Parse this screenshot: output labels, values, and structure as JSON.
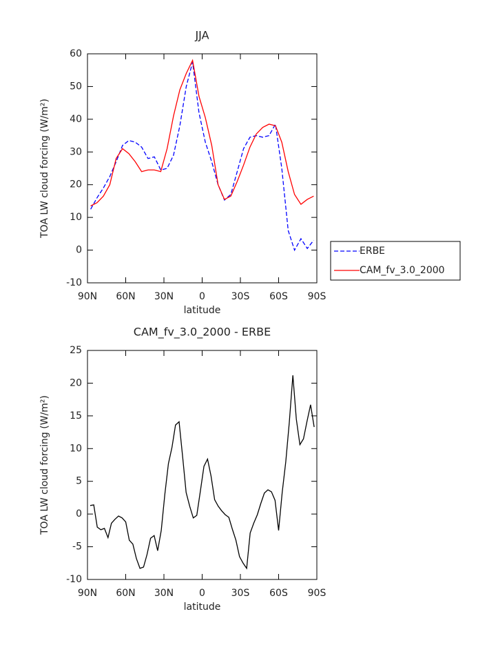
{
  "chart_data": [
    {
      "type": "line",
      "title": "JJA",
      "xlabel": "latitude",
      "ylabel": "TOA LW cloud forcing (W/m²)",
      "x": [
        87.5,
        82.5,
        77.5,
        72.5,
        67.5,
        62.5,
        57.5,
        52.5,
        47.5,
        42.5,
        37.5,
        32.5,
        27.5,
        22.5,
        17.5,
        12.5,
        7.5,
        2.5,
        -2.5,
        -7.5,
        -12.5,
        -17.5,
        -22.5,
        -27.5,
        -32.5,
        -37.5,
        -42.5,
        -47.5,
        -52.5,
        -57.5,
        -62.5,
        -67.5,
        -72.5,
        -77.5,
        -82.5,
        -87.5
      ],
      "series": [
        {
          "name": "ERBE",
          "color": "#0000ff",
          "dashed": true,
          "values": [
            12.5,
            16,
            19,
            22.5,
            27,
            32,
            33.5,
            33,
            31.5,
            28,
            28.5,
            24.5,
            25,
            29,
            38,
            50,
            57.5,
            42,
            33,
            27,
            20,
            15.3,
            17,
            24,
            31,
            34.5,
            35,
            34.5,
            35,
            38.5,
            25,
            6,
            0,
            3.5,
            0.5,
            3
          ]
        },
        {
          "name": "CAM_fv_3.0_2000",
          "color": "#ff0000",
          "dashed": false,
          "values": [
            13.5,
            14.5,
            16.5,
            20,
            28,
            31,
            29.5,
            27,
            24,
            24.5,
            24.5,
            24,
            31,
            41,
            49,
            54,
            58,
            47,
            40.5,
            32,
            20,
            15.5,
            16.5,
            21,
            26,
            31.5,
            35.5,
            37.5,
            38.5,
            38,
            33,
            24,
            17,
            14,
            15.5,
            16.5
          ]
        }
      ],
      "xlim": [
        90,
        -90
      ],
      "xticks": [
        {
          "value": 90,
          "label": "90N"
        },
        {
          "value": 60,
          "label": "60N"
        },
        {
          "value": 30,
          "label": "30N"
        },
        0,
        {
          "value": -30,
          "label": "30S"
        },
        {
          "value": -60,
          "label": "60S"
        },
        {
          "value": -90,
          "label": "90S"
        }
      ],
      "ylim": [
        -10,
        60
      ],
      "yticks": [
        -10,
        0,
        10,
        20,
        30,
        40,
        50,
        60
      ],
      "legend": "right"
    },
    {
      "type": "line",
      "title": "CAM_fv_3.0_2000 - ERBE",
      "xlabel": "latitude",
      "ylabel": "TOA LW cloud forcing (W/m²)",
      "x": [
        87.9,
        85.1,
        82.3,
        79.5,
        76.7,
        73.9,
        71.2,
        68.4,
        65.6,
        62.8,
        60.0,
        57.2,
        54.4,
        51.6,
        48.8,
        46.0,
        43.3,
        40.5,
        37.7,
        34.9,
        32.1,
        29.3,
        26.5,
        23.7,
        20.9,
        18.1,
        15.3,
        12.6,
        9.8,
        7.0,
        4.2,
        1.4,
        -1.4,
        -4.2,
        -7.0,
        -9.8,
        -12.6,
        -15.3,
        -18.1,
        -20.9,
        -23.7,
        -26.5,
        -29.3,
        -32.1,
        -34.9,
        -37.7,
        -40.5,
        -43.3,
        -46.0,
        -48.8,
        -51.6,
        -54.4,
        -57.2,
        -60.0,
        -62.8,
        -65.6,
        -68.4,
        -71.2,
        -73.9,
        -76.7,
        -79.5,
        -82.3,
        -85.1,
        -87.9
      ],
      "series": [
        {
          "color": "#000000",
          "dashed": false,
          "values": [
            1.3,
            1.4,
            -2,
            -2.4,
            -2.2,
            -3.6,
            -1.4,
            -0.8,
            -0.3,
            -0.6,
            -1.2,
            -4,
            -4.6,
            -6.8,
            -8.3,
            -8.1,
            -6.2,
            -3.7,
            -3.3,
            -5.6,
            -2.5,
            3,
            7.7,
            10.2,
            13.6,
            14.1,
            8.7,
            3.3,
            1.2,
            -0.6,
            -0.2,
            3.5,
            7.3,
            8.4,
            5.8,
            2.2,
            1.2,
            0.5,
            -0.1,
            -0.5,
            -2.3,
            -4,
            -6.5,
            -7.5,
            -8.3,
            -2.9,
            -1.4,
            -0.1,
            1.6,
            3.2,
            3.7,
            3.4,
            2.1,
            -2.5,
            3.3,
            8,
            14,
            21.2,
            14.5,
            10.6,
            11.5,
            14.2,
            16.7,
            13.3
          ]
        }
      ],
      "xlim": [
        90,
        -90
      ],
      "xticks": [
        {
          "value": 90,
          "label": "90N"
        },
        {
          "value": 60,
          "label": "60N"
        },
        {
          "value": 30,
          "label": "30N"
        },
        0,
        {
          "value": -30,
          "label": "30S"
        },
        {
          "value": -60,
          "label": "60S"
        },
        {
          "value": -90,
          "label": "90S"
        }
      ],
      "ylim": [
        -10,
        25
      ],
      "yticks": [
        -10,
        -5,
        0,
        5,
        10,
        15,
        20,
        25
      ]
    }
  ]
}
